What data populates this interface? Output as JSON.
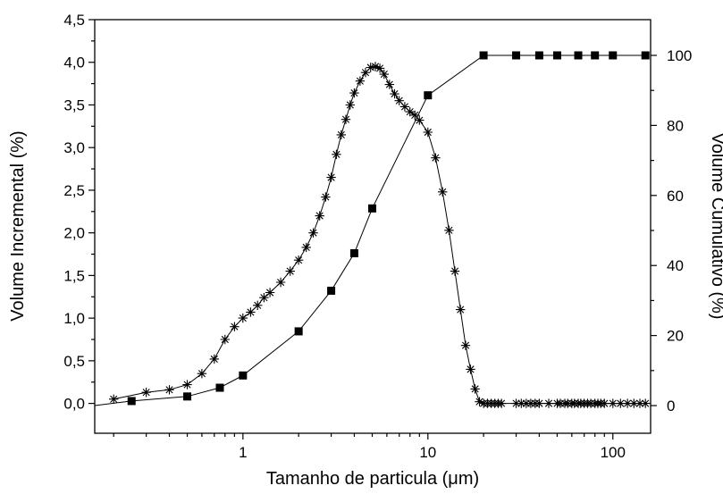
{
  "chart_data": {
    "type": "line",
    "title": "",
    "xlabel": "Tamanho de particula (μm)",
    "ylabel_left": "Volume Incremental (%)",
    "ylabel_right": "Volume Cumulativo (%)",
    "x_scale": "log",
    "xlim": [
      0.158,
      160
    ],
    "ylim_left": [
      -0.35,
      4.5
    ],
    "ylim_right": [
      -7.9,
      110.2
    ],
    "x_ticks": [
      {
        "value": 1,
        "label": "1"
      },
      {
        "value": 10,
        "label": "10"
      },
      {
        "value": 100,
        "label": "100"
      }
    ],
    "y_ticks_left": [
      {
        "value": 0.0,
        "label": "0,0"
      },
      {
        "value": 0.5,
        "label": "0,5"
      },
      {
        "value": 1.0,
        "label": "1,0"
      },
      {
        "value": 1.5,
        "label": "1,5"
      },
      {
        "value": 2.0,
        "label": "2,0"
      },
      {
        "value": 2.5,
        "label": "2,5"
      },
      {
        "value": 3.0,
        "label": "3,0"
      },
      {
        "value": 3.5,
        "label": "3,5"
      },
      {
        "value": 4.0,
        "label": "4,0"
      },
      {
        "value": 4.5,
        "label": "4,5"
      }
    ],
    "y_ticks_right": [
      {
        "value": 0,
        "label": "0"
      },
      {
        "value": 20,
        "label": "20"
      },
      {
        "value": 40,
        "label": "40"
      },
      {
        "value": 60,
        "label": "60"
      },
      {
        "value": 80,
        "label": "80"
      },
      {
        "value": 100,
        "label": "100"
      }
    ],
    "grid": false,
    "series": [
      {
        "axis": "left",
        "marker": "asterisk",
        "color": "#000000",
        "x": [
          0.2,
          0.3,
          0.4,
          0.5,
          0.6,
          0.7,
          0.8,
          0.9,
          1.0,
          1.1,
          1.2,
          1.3,
          1.4,
          1.6,
          1.8,
          2.0,
          2.2,
          2.4,
          2.6,
          2.8,
          3.0,
          3.2,
          3.4,
          3.6,
          3.8,
          4.0,
          4.3,
          4.6,
          4.9,
          5.2,
          5.5,
          5.8,
          6.2,
          6.6,
          7.0,
          7.5,
          8.0,
          8.5,
          9.0,
          10.0,
          11.0,
          12.0,
          13.0,
          14.0,
          15.0,
          16.0,
          17.0,
          18.0,
          19.0,
          20,
          21,
          22,
          23,
          24,
          25,
          30,
          32,
          34,
          36,
          38,
          40,
          45,
          50,
          52,
          55,
          57,
          60,
          62,
          65,
          67,
          70,
          73,
          76,
          80,
          83,
          86,
          90,
          100,
          110,
          120,
          130,
          140,
          150
        ],
        "y": [
          0.05,
          0.13,
          0.16,
          0.22,
          0.35,
          0.52,
          0.75,
          0.9,
          1.0,
          1.07,
          1.15,
          1.24,
          1.3,
          1.42,
          1.55,
          1.68,
          1.83,
          2.0,
          2.2,
          2.42,
          2.65,
          2.92,
          3.15,
          3.33,
          3.5,
          3.64,
          3.78,
          3.88,
          3.94,
          3.95,
          3.93,
          3.86,
          3.74,
          3.63,
          3.55,
          3.48,
          3.42,
          3.38,
          3.32,
          3.18,
          2.88,
          2.48,
          2.03,
          1.55,
          1.1,
          0.68,
          0.4,
          0.17,
          0.02,
          0,
          0,
          0,
          0,
          0,
          0,
          0,
          0,
          0,
          0,
          0,
          0,
          0,
          0,
          0,
          0,
          0,
          0,
          0,
          0,
          0,
          0,
          0,
          0,
          0,
          0,
          0,
          0,
          0,
          0,
          0,
          0,
          0,
          0
        ]
      },
      {
        "axis": "right",
        "marker": "square",
        "color": "#000000",
        "line_start": {
          "x": 0.158,
          "y": 0.0
        },
        "x": [
          0.25,
          0.5,
          0.75,
          1.0,
          2.0,
          3.0,
          4.0,
          5.0,
          10.0,
          20,
          30,
          40,
          50,
          65,
          80,
          100,
          150
        ],
        "y": [
          1.3,
          2.6,
          5.1,
          8.6,
          21.2,
          32.8,
          43.5,
          56.3,
          88.6,
          100,
          100,
          100,
          100,
          100,
          100,
          100,
          100
        ]
      }
    ]
  }
}
